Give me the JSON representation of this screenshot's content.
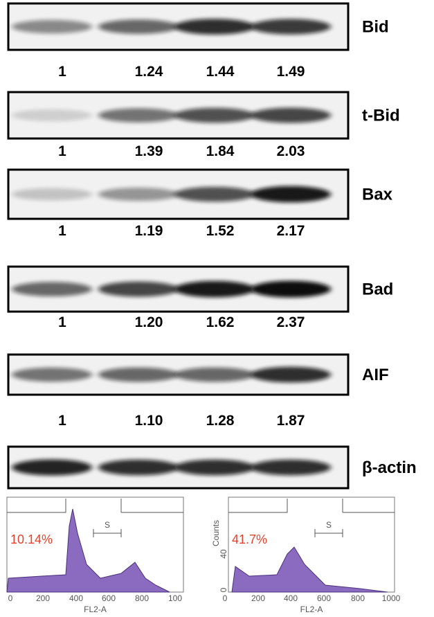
{
  "blots": [
    {
      "label": "Bid",
      "values": [
        "1",
        "1.24",
        "1.44",
        "1.49"
      ]
    },
    {
      "label": "t-Bid",
      "values": [
        "1",
        "1.39",
        "1.84",
        "2.03"
      ]
    },
    {
      "label": "Bax",
      "values": [
        "1",
        "1.19",
        "1.52",
        "2.17"
      ]
    },
    {
      "label": "Bad",
      "values": [
        "1",
        "1.20",
        "1.62",
        "2.37"
      ]
    },
    {
      "label": "AIF",
      "values": [
        "1",
        "1.10",
        "1.28",
        "1.87"
      ]
    },
    {
      "label": "β-actin"
    }
  ],
  "histograms": [
    {
      "percent": "10.14%",
      "gate_label": "S",
      "x_ticks": [
        "0",
        "200",
        "400",
        "600",
        "800",
        "100"
      ],
      "x_label": "FL2-A"
    },
    {
      "percent": "41.7%",
      "gate_label": "S",
      "x_ticks": [
        "0",
        "200",
        "400",
        "600",
        "800",
        "1000"
      ],
      "x_label": "FL2-A",
      "y_label": "Counts",
      "y_ticks": [
        "40",
        "0"
      ]
    }
  ]
}
